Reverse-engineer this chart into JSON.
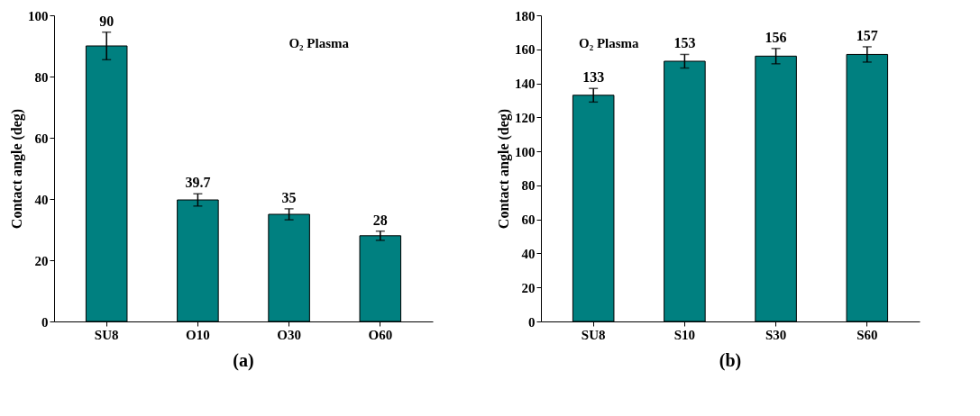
{
  "chart_data": [
    {
      "type": "bar",
      "categories": [
        "SU8",
        "O10",
        "O30",
        "O60"
      ],
      "values": [
        90,
        39.7,
        35,
        28
      ],
      "errors": [
        4.5,
        2,
        1.8,
        1.5
      ],
      "color": "#008080",
      "ylabel": "Contact angle (deg)",
      "ylim": [
        0,
        100
      ],
      "yticks": [
        0,
        20,
        40,
        60,
        80,
        100
      ],
      "data_labels": true,
      "grid": false,
      "annotations": [
        "O₂ Plasma",
        "(a)"
      ]
    },
    {
      "type": "bar",
      "categories": [
        "SU8",
        "S10",
        "S30",
        "S60"
      ],
      "values": [
        133,
        153,
        156,
        157
      ],
      "errors": [
        4,
        4,
        4.5,
        4.5
      ],
      "color": "#008080",
      "ylabel": "Contact angle (deg)",
      "ylim": [
        0,
        180
      ],
      "yticks": [
        0,
        20,
        40,
        60,
        80,
        100,
        120,
        140,
        160,
        180
      ],
      "data_labels": true,
      "grid": false,
      "annotations": [
        "O₂ Plasma",
        "(b)"
      ]
    }
  ]
}
